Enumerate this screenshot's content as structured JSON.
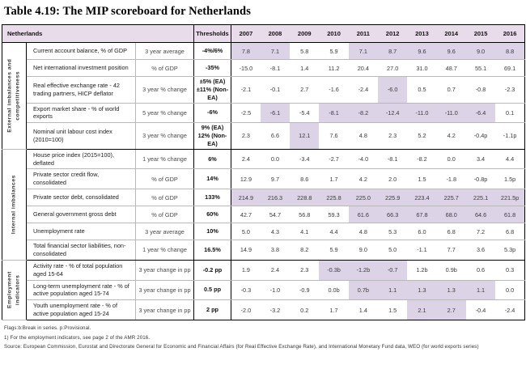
{
  "title": "Table 4.19: The MIP scoreboard for Netherlands",
  "table": {
    "corner_label": "Netherlands",
    "thresholds_label": "Thresholds",
    "years": [
      "2007",
      "2008",
      "2009",
      "2010",
      "2011",
      "2012",
      "2013",
      "2014",
      "2015",
      "2016"
    ],
    "header_color": "#e9dcea",
    "highlight_color": "#ddd3e6",
    "groups": [
      {
        "label": "External imbalances and competitiveness",
        "rows": [
          {
            "indicator": "Current account balance, % of GDP",
            "measure": "3 year average",
            "threshold": "-4%/6%",
            "values": [
              "7.8",
              "7.1",
              "5.8",
              "5.9",
              "7.1",
              "8.7",
              "9.6",
              "9.6",
              "9.0",
              "8.8"
            ],
            "highlight": [
              1,
              1,
              0,
              0,
              1,
              1,
              1,
              1,
              1,
              1
            ]
          },
          {
            "indicator": "Net international investment position",
            "measure": "% of GDP",
            "threshold": "-35%",
            "values": [
              "-15.0",
              "-8.1",
              "1.4",
              "11.2",
              "20.4",
              "27.0",
              "31.0",
              "48.7",
              "55.1",
              "69.1"
            ],
            "highlight": [
              0,
              0,
              0,
              0,
              0,
              0,
              0,
              0,
              0,
              0
            ]
          },
          {
            "indicator": "Real effective exchange rate - 42 trading partners, HICP deflator",
            "measure": "3 year % change",
            "threshold": "±5% (EA)\n±11% (Non-EA)",
            "values": [
              "-2.1",
              "-0.1",
              "2.7",
              "-1.6",
              "-2.4",
              "-6.0",
              "0.5",
              "0.7",
              "-0.8",
              "-2.3"
            ],
            "highlight": [
              0,
              0,
              0,
              0,
              0,
              1,
              0,
              0,
              0,
              0
            ]
          },
          {
            "indicator": "Export market share - % of world exports",
            "measure": "5 year % change",
            "threshold": "-6%",
            "values": [
              "-2.5",
              "-6.1",
              "-5.4",
              "-8.1",
              "-8.2",
              "-12.4",
              "-11.0",
              "-11.0",
              "-6.4",
              "0.1"
            ],
            "highlight": [
              0,
              1,
              0,
              1,
              1,
              1,
              1,
              1,
              1,
              0
            ]
          },
          {
            "indicator": "Nominal unit labour cost index (2010=100)",
            "measure": "3 year % change",
            "threshold": "9% (EA)\n12% (Non-EA)",
            "values": [
              "2.3",
              "6.6",
              "12.1",
              "7.6",
              "4.8",
              "2.3",
              "5.2",
              "4.2",
              "-0.4p",
              "-1.1p"
            ],
            "highlight": [
              0,
              0,
              1,
              0,
              0,
              0,
              0,
              0,
              0,
              0
            ]
          }
        ]
      },
      {
        "label": "Internal imbalances",
        "rows": [
          {
            "indicator": "House price index (2015=100), deflated",
            "measure": "1 year % change",
            "threshold": "6%",
            "values": [
              "2.4",
              "0.0",
              "-3.4",
              "-2.7",
              "-4.0",
              "-8.1",
              "-8.2",
              "0.0",
              "3.4",
              "4.4"
            ],
            "highlight": [
              0,
              0,
              0,
              0,
              0,
              0,
              0,
              0,
              0,
              0
            ]
          },
          {
            "indicator": "Private sector credit flow, consolidated",
            "measure": "% of GDP",
            "threshold": "14%",
            "values": [
              "12.9",
              "9.7",
              "8.6",
              "1.7",
              "4.2",
              "2.0",
              "1.5",
              "-1.8",
              "-0.8p",
              "1.5p"
            ],
            "highlight": [
              0,
              0,
              0,
              0,
              0,
              0,
              0,
              0,
              0,
              0
            ]
          },
          {
            "indicator": "Private sector debt, consolidated",
            "measure": "% of GDP",
            "threshold": "133%",
            "values": [
              "214.9",
              "216.3",
              "228.8",
              "225.8",
              "225.0",
              "225.9",
              "223.4",
              "225.7",
              "225.1",
              "221.5p"
            ],
            "highlight": [
              1,
              1,
              1,
              1,
              1,
              1,
              1,
              1,
              1,
              1
            ]
          },
          {
            "indicator": "General government gross debt",
            "measure": "% of GDP",
            "threshold": "60%",
            "values": [
              "42.7",
              "54.7",
              "56.8",
              "59.3",
              "61.6",
              "66.3",
              "67.8",
              "68.0",
              "64.6",
              "61.8"
            ],
            "highlight": [
              0,
              0,
              0,
              0,
              1,
              1,
              1,
              1,
              1,
              1
            ]
          },
          {
            "indicator": "Unemployment rate",
            "measure": "3 year average",
            "threshold": "10%",
            "values": [
              "5.0",
              "4.3",
              "4.1",
              "4.4",
              "4.8",
              "5.3",
              "6.0",
              "6.8",
              "7.2",
              "6.8"
            ],
            "highlight": [
              0,
              0,
              0,
              0,
              0,
              0,
              0,
              0,
              0,
              0
            ]
          },
          {
            "indicator": "Total financial sector liabilities, non-consolidated",
            "measure": "1 year % change",
            "threshold": "16.5%",
            "values": [
              "14.9",
              "3.8",
              "8.2",
              "5.9",
              "9.0",
              "5.0",
              "-1.1",
              "7.7",
              "3.6",
              "5.3p"
            ],
            "highlight": [
              0,
              0,
              0,
              0,
              0,
              0,
              0,
              0,
              0,
              0
            ]
          }
        ]
      },
      {
        "label": "Employment indicators",
        "rows": [
          {
            "indicator": "Activity rate - % of total population aged 15-64",
            "measure": "3 year change in pp",
            "threshold": "-0.2 pp",
            "values": [
              "1.9",
              "2.4",
              "2.3",
              "-0.3b",
              "-1.2b",
              "-0.7",
              "1.2b",
              "0.9b",
              "0.6",
              "0.3"
            ],
            "highlight": [
              0,
              0,
              0,
              1,
              1,
              1,
              0,
              0,
              0,
              0
            ]
          },
          {
            "indicator": "Long-term unemployment rate - % of active population aged 15-74",
            "measure": "3 year change in pp",
            "threshold": "0.5 pp",
            "values": [
              "-0.3",
              "-1.0",
              "-0.9",
              "0.0b",
              "0.7b",
              "1.1",
              "1.3",
              "1.3",
              "1.1",
              "0.0"
            ],
            "highlight": [
              0,
              0,
              0,
              0,
              1,
              1,
              1,
              1,
              1,
              0
            ]
          },
          {
            "indicator": "Youth unemployment rate - % of active population aged 15-24",
            "measure": "3 year change in pp",
            "threshold": "2 pp",
            "values": [
              "-2.0",
              "-3.2",
              "0.2",
              "1.7",
              "1.4",
              "1.5",
              "2.1",
              "2.7",
              "-0.4",
              "-2.4"
            ],
            "highlight": [
              0,
              0,
              0,
              0,
              0,
              0,
              1,
              1,
              0,
              0
            ]
          }
        ]
      }
    ]
  },
  "footnotes": {
    "flags": "Flags:b:Break in series. p:Provisional.",
    "note1": "1) For the employment indicators, see page 2 of the AMR 2016.",
    "source": "Source: European Commission, Eurostat and Directorate General for Economic and Financial Affairs (for Real Effective Exchange Rate), and International Monetary Fund data, WEO (for world exports series)"
  }
}
